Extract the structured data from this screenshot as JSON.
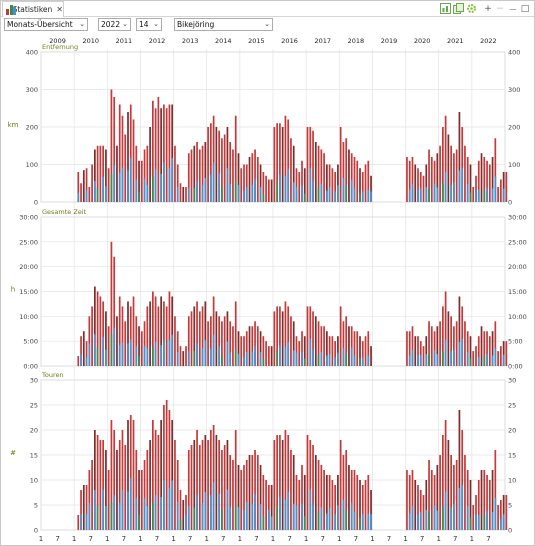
{
  "tab": {
    "label": "Statistiken",
    "close": "✕"
  },
  "window_buttons": {
    "add": "+",
    "remove": "−",
    "minimize": "—",
    "maximize": "□"
  },
  "toolbar": {
    "period_select": "Monats-Übersicht",
    "year_select": "2022",
    "count_select": "14",
    "sport_select": "Bikejöring"
  },
  "years": [
    "2009",
    "2010",
    "2011",
    "2012",
    "2013",
    "2014",
    "2015",
    "2016",
    "2017",
    "2018",
    "2019",
    "2020",
    "2021",
    "2022"
  ],
  "month_ticks": [
    "1",
    "7"
  ],
  "colors": {
    "red": "#c43a3a",
    "dark_red": "#7a2e2e",
    "blue": "#4a90cc",
    "green": "#3f8a4f",
    "magenta": "#ff4aff",
    "axis_label": "#6b7d1a",
    "grid": "#e3e3e3"
  },
  "chart_data": [
    {
      "type": "bar",
      "title": "Entfernung",
      "ylabel": "km",
      "ylim": [
        0,
        400
      ],
      "yticks": [
        "0",
        "100",
        "200",
        "300",
        "400"
      ],
      "x_start": "2009-01",
      "values": [
        0,
        0,
        0,
        0,
        0,
        0,
        0,
        0,
        0,
        0,
        0,
        0,
        0,
        80,
        50,
        85,
        90,
        40,
        100,
        140,
        150,
        150,
        150,
        140,
        90,
        300,
        280,
        150,
        260,
        230,
        180,
        240,
        260,
        220,
        150,
        110,
        110,
        140,
        150,
        200,
        270,
        250,
        280,
        250,
        260,
        250,
        260,
        260,
        150,
        100,
        50,
        40,
        40,
        130,
        140,
        150,
        160,
        140,
        150,
        160,
        200,
        210,
        230,
        200,
        190,
        170,
        180,
        200,
        160,
        140,
        230,
        130,
        90,
        100,
        100,
        120,
        130,
        140,
        120,
        100,
        80,
        70,
        60,
        60,
        200,
        210,
        210,
        200,
        230,
        220,
        170,
        150,
        90,
        80,
        110,
        90,
        200,
        200,
        190,
        160,
        150,
        140,
        130,
        100,
        100,
        90,
        80,
        100,
        200,
        160,
        170,
        140,
        130,
        120,
        110,
        90,
        80,
        100,
        110,
        70,
        0,
        0,
        0,
        0,
        0,
        0,
        0,
        0,
        0,
        0,
        0,
        0,
        120,
        110,
        120,
        100,
        90,
        80,
        70,
        100,
        140,
        120,
        110,
        130,
        150,
        200,
        230,
        180,
        150,
        130,
        140,
        240,
        200,
        150,
        120,
        100,
        40,
        70,
        110,
        130,
        120,
        110,
        100,
        120,
        170,
        40,
        60,
        80,
        80,
        0,
        0,
        0,
        0,
        0,
        0,
        0,
        0,
        0,
        0,
        0
      ]
    },
    {
      "type": "bar",
      "title": "Gesamte Zeit",
      "ylabel": "h",
      "ylim": [
        0,
        30
      ],
      "yticks": [
        "0:00",
        "5:00",
        "10:00",
        "15:00",
        "20:00",
        "25:00",
        "30:00"
      ],
      "x_start": "2009-01",
      "values": [
        0,
        0,
        0,
        0,
        0,
        0,
        0,
        0,
        0,
        0,
        0,
        0,
        0,
        2,
        6,
        7,
        5,
        10,
        12,
        16,
        15,
        14,
        13,
        11,
        8,
        25,
        22,
        10,
        14,
        12,
        9,
        13,
        12,
        14,
        10,
        8,
        7,
        9,
        12,
        13,
        15,
        14,
        12,
        14,
        13,
        12,
        15,
        14,
        10,
        7,
        4,
        3,
        4,
        10,
        11,
        12,
        13,
        11,
        12,
        13,
        9,
        10,
        14,
        11,
        10,
        9,
        10,
        11,
        9,
        8,
        13,
        7,
        6,
        6,
        7,
        8,
        8,
        9,
        8,
        7,
        6,
        5,
        4,
        4,
        11,
        12,
        12,
        11,
        13,
        12,
        10,
        9,
        6,
        5,
        7,
        6,
        12,
        12,
        11,
        10,
        9,
        8,
        8,
        7,
        6,
        6,
        5,
        6,
        12,
        9,
        10,
        8,
        8,
        7,
        7,
        6,
        5,
        6,
        7,
        4,
        0,
        0,
        0,
        0,
        0,
        0,
        0,
        0,
        0,
        0,
        0,
        0,
        7,
        7,
        8,
        6,
        6,
        5,
        4,
        6,
        9,
        8,
        7,
        8,
        9,
        12,
        15,
        11,
        10,
        8,
        9,
        14,
        12,
        9,
        7,
        6,
        3,
        4,
        6,
        8,
        7,
        7,
        6,
        7,
        9,
        3,
        4,
        5,
        5,
        0,
        0,
        0,
        0,
        0,
        0,
        0,
        0,
        0,
        0,
        0
      ]
    },
    {
      "type": "bar",
      "title": "Touren",
      "ylabel": "#",
      "ylim": [
        0,
        30
      ],
      "yticks": [
        "0",
        "5",
        "10",
        "15",
        "20",
        "25",
        "30"
      ],
      "x_start": "2009-01",
      "values": [
        0,
        0,
        0,
        0,
        0,
        0,
        0,
        0,
        0,
        0,
        0,
        0,
        0,
        3,
        8,
        9,
        9,
        12,
        14,
        20,
        19,
        18,
        18,
        16,
        12,
        22,
        20,
        16,
        18,
        20,
        17,
        22,
        23,
        22,
        16,
        12,
        12,
        14,
        16,
        18,
        22,
        20,
        19,
        22,
        25,
        26,
        24,
        22,
        18,
        14,
        8,
        6,
        7,
        16,
        17,
        18,
        20,
        17,
        18,
        19,
        18,
        20,
        21,
        19,
        18,
        16,
        17,
        18,
        15,
        14,
        20,
        13,
        12,
        13,
        14,
        15,
        15,
        16,
        15,
        13,
        11,
        10,
        9,
        9,
        18,
        19,
        19,
        18,
        20,
        19,
        16,
        15,
        11,
        10,
        13,
        11,
        19,
        18,
        17,
        15,
        14,
        13,
        12,
        11,
        11,
        10,
        9,
        11,
        18,
        15,
        16,
        13,
        12,
        12,
        11,
        10,
        9,
        10,
        11,
        8,
        0,
        0,
        0,
        0,
        0,
        0,
        0,
        0,
        0,
        0,
        0,
        0,
        12,
        11,
        12,
        10,
        9,
        8,
        7,
        10,
        14,
        12,
        11,
        13,
        15,
        19,
        22,
        18,
        15,
        13,
        14,
        24,
        20,
        15,
        12,
        10,
        5,
        7,
        10,
        12,
        12,
        11,
        10,
        12,
        16,
        5,
        6,
        7,
        7,
        0,
        0,
        0,
        0,
        0,
        0,
        0,
        0,
        0,
        0,
        0
      ]
    }
  ]
}
